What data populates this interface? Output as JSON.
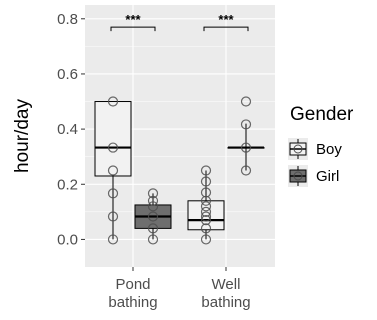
{
  "colors": {
    "panel_bg": "#ebebeb",
    "grid_major": "#ffffff",
    "boy_fill": "#f2f2f2",
    "girl_fill": "#6e6e6e",
    "outline": "#000000",
    "point_stroke": "#4d4d4d"
  },
  "chart_data": {
    "type": "box",
    "title": "",
    "xlabel": "",
    "ylabel": "hour/day",
    "ylim": [
      -0.1,
      0.85
    ],
    "y_ticks": [
      0.0,
      0.2,
      0.4,
      0.6,
      0.8
    ],
    "y_tick_labels": [
      "0.0",
      "0.2",
      "0.4",
      "0.6",
      "0.8"
    ],
    "grid": true,
    "categories": [
      {
        "label_lines": [
          "Pond",
          "bathing"
        ]
      },
      {
        "label_lines": [
          "Well",
          "bathing"
        ]
      }
    ],
    "legend": {
      "title": "Gender",
      "position": "right",
      "entries": [
        "Boy",
        "Girl"
      ]
    },
    "series": [
      {
        "name": "Boy",
        "boxes": [
          {
            "category": 0,
            "q1": 0.23,
            "median": 0.333,
            "q3": 0.5,
            "whisker_low": 0.0,
            "whisker_high": 0.5,
            "points": [
              0.5,
              0.333,
              0.25,
              0.167,
              0.083,
              0.0
            ]
          },
          {
            "category": 1,
            "q1": 0.035,
            "median": 0.07,
            "q3": 0.14,
            "whisker_low": 0.0,
            "whisker_high": 0.25,
            "points": [
              0.25,
              0.21,
              0.17,
              0.14,
              0.12,
              0.1,
              0.083,
              0.07,
              0.04,
              0.0
            ]
          }
        ]
      },
      {
        "name": "Girl",
        "boxes": [
          {
            "category": 0,
            "q1": 0.04,
            "median": 0.083,
            "q3": 0.125,
            "whisker_low": 0.0,
            "whisker_high": 0.167,
            "points": [
              0.167,
              0.14,
              0.12,
              0.083,
              0.04,
              0.0
            ]
          },
          {
            "category": 1,
            "q1": 0.333,
            "median": 0.333,
            "q3": 0.333,
            "whisker_low": 0.25,
            "whisker_high": 0.42,
            "points": [
              0.5,
              0.417,
              0.333,
              0.25
            ]
          }
        ]
      }
    ],
    "annotations": [
      {
        "text": "***",
        "category": 0,
        "y": 0.77
      },
      {
        "text": "***",
        "category": 1,
        "y": 0.77
      }
    ]
  }
}
